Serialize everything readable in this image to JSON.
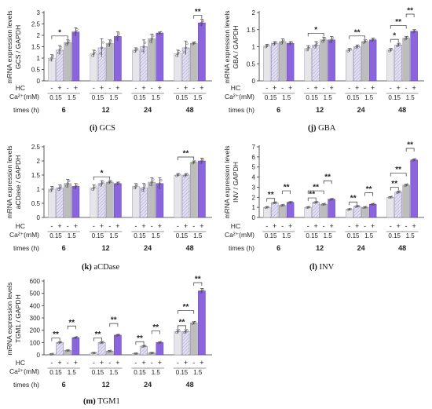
{
  "chart_data": [
    {
      "type": "bar",
      "panel": "i",
      "caption_label": "(i)",
      "caption_text": "GCS",
      "ylabel_line1": "mRNA expression levels",
      "ylabel_line2": "GCS / GAPDH",
      "ylim": [
        0,
        3
      ],
      "yticks": [
        "0",
        "0.5",
        "1",
        "1.5",
        "2",
        "2.5",
        "3"
      ],
      "values": [
        1.0,
        1.35,
        1.68,
        2.15,
        1.2,
        1.45,
        1.65,
        1.95,
        1.35,
        1.5,
        1.85,
        2.1,
        1.2,
        1.45,
        1.65,
        2.55
      ],
      "errors": [
        0.15,
        0.2,
        0.12,
        0.18,
        0.15,
        0.4,
        0.15,
        0.2,
        0.1,
        0.3,
        0.2,
        0.05,
        0.15,
        0.3,
        0.05,
        0.15
      ],
      "significance": [
        {
          "group": 0,
          "from": 0,
          "to": 2,
          "label": "*"
        },
        {
          "group": 3,
          "from": 2,
          "to": 3,
          "label": "**"
        }
      ]
    },
    {
      "type": "bar",
      "panel": "j",
      "caption_label": "(j)",
      "caption_text": "GBA",
      "ylabel_line1": "mRNA expression levels",
      "ylabel_line2": "GBA / GAPDH",
      "ylim": [
        0,
        2
      ],
      "yticks": [
        "0",
        "0.5",
        "1",
        "1.5",
        "2"
      ],
      "values": [
        1.02,
        1.1,
        1.15,
        1.1,
        0.95,
        1.05,
        1.2,
        1.2,
        0.9,
        1.0,
        1.15,
        1.2,
        0.9,
        1.05,
        1.25,
        1.45
      ],
      "errors": [
        0.05,
        0.05,
        0.08,
        0.05,
        0.08,
        0.1,
        0.08,
        0.1,
        0.05,
        0.05,
        0.05,
        0.05,
        0.05,
        0.05,
        0.05,
        0.05
      ],
      "significance": [
        {
          "group": 1,
          "from": 0,
          "to": 2,
          "label": "*"
        },
        {
          "group": 2,
          "from": 0,
          "to": 2,
          "label": "**"
        },
        {
          "group": 3,
          "from": 0,
          "to": 1,
          "label": "*"
        },
        {
          "group": 3,
          "from": 0,
          "to": 2,
          "label": "**"
        },
        {
          "group": 3,
          "from": 2,
          "to": 3,
          "label": "**"
        }
      ]
    },
    {
      "type": "bar",
      "panel": "k",
      "caption_label": "(k)",
      "caption_text": "aCDase",
      "ylabel_line1": "mRNA expression levels",
      "ylabel_line2": "aCDase / GAPDH",
      "ylim": [
        0,
        2.5
      ],
      "yticks": [
        "0",
        "0.5",
        "1",
        "1.5",
        "2",
        "2.5"
      ],
      "values": [
        1.0,
        1.05,
        1.2,
        1.1,
        1.05,
        1.2,
        1.25,
        1.2,
        1.1,
        1.05,
        1.25,
        1.2,
        1.5,
        1.5,
        1.95,
        2.0
      ],
      "errors": [
        0.1,
        0.1,
        0.15,
        0.1,
        0.1,
        0.1,
        0.05,
        0.05,
        0.1,
        0.15,
        0.15,
        0.2,
        0.05,
        0.05,
        0.05,
        0.1
      ],
      "significance": [
        {
          "group": 1,
          "from": 0,
          "to": 2,
          "label": "*"
        },
        {
          "group": 3,
          "from": 0,
          "to": 2,
          "label": "**"
        }
      ]
    },
    {
      "type": "bar",
      "panel": "l",
      "caption_label": "(l)",
      "caption_text": "INV",
      "ylabel_line1": "mRNA expression levels",
      "ylabel_line2": "INV / GAPDH",
      "ylim": [
        0,
        7
      ],
      "yticks": [
        "0",
        "1",
        "2",
        "3",
        "4",
        "5",
        "6",
        "7"
      ],
      "values": [
        1.0,
        1.45,
        1.2,
        1.5,
        1.0,
        1.5,
        1.3,
        1.8,
        0.8,
        1.1,
        1.0,
        1.3,
        2.0,
        2.5,
        3.2,
        5.7
      ],
      "errors": [
        0.05,
        0.05,
        0.05,
        0.05,
        0.05,
        0.05,
        0.05,
        0.05,
        0.05,
        0.05,
        0.05,
        0.05,
        0.05,
        0.1,
        0.1,
        0.1
      ],
      "significance": [
        {
          "group": 0,
          "from": 0,
          "to": 1,
          "label": "**"
        },
        {
          "group": 0,
          "from": 2,
          "to": 3,
          "label": "**"
        },
        {
          "group": 1,
          "from": 0,
          "to": 1,
          "label": "**"
        },
        {
          "group": 1,
          "from": 0,
          "to": 2,
          "label": "**"
        },
        {
          "group": 1,
          "from": 2,
          "to": 3,
          "label": "**"
        },
        {
          "group": 2,
          "from": 0,
          "to": 1,
          "label": "**"
        },
        {
          "group": 2,
          "from": 2,
          "to": 3,
          "label": "**"
        },
        {
          "group": 3,
          "from": 0,
          "to": 1,
          "label": "**"
        },
        {
          "group": 3,
          "from": 0,
          "to": 2,
          "label": "**"
        },
        {
          "group": 3,
          "from": 2,
          "to": 3,
          "label": "**"
        }
      ]
    },
    {
      "type": "bar",
      "panel": "m",
      "caption_label": "(m)",
      "caption_text": "TGM1",
      "ylabel_line1": "mRNA expression levels",
      "ylabel_line2": "TGM1 / GAPDH",
      "ylim": [
        0,
        600
      ],
      "yticks": [
        "0",
        "100",
        "200",
        "300",
        "400",
        "500",
        "600"
      ],
      "values": [
        5,
        100,
        35,
        140,
        15,
        100,
        30,
        160,
        10,
        70,
        15,
        100,
        190,
        190,
        260,
        520
      ],
      "errors": [
        2,
        5,
        3,
        5,
        2,
        5,
        3,
        5,
        2,
        5,
        2,
        5,
        15,
        15,
        10,
        20
      ],
      "significance": [
        {
          "group": 0,
          "from": 0,
          "to": 1,
          "label": "**"
        },
        {
          "group": 0,
          "from": 2,
          "to": 3,
          "label": "**"
        },
        {
          "group": 1,
          "from": 0,
          "to": 1,
          "label": "**"
        },
        {
          "group": 1,
          "from": 2,
          "to": 3,
          "label": "**"
        },
        {
          "group": 2,
          "from": 0,
          "to": 1,
          "label": "**"
        },
        {
          "group": 2,
          "from": 2,
          "to": 3,
          "label": "**"
        },
        {
          "group": 3,
          "from": 0,
          "to": 1,
          "label": "**"
        },
        {
          "group": 3,
          "from": 0,
          "to": 2,
          "label": "**"
        },
        {
          "group": 3,
          "from": 2,
          "to": 3,
          "label": "**"
        }
      ]
    }
  ],
  "shared_axis": {
    "hc_label": "HC",
    "hc_signs": [
      "-",
      "+",
      "-",
      "+"
    ],
    "ca_label": "Ca²⁺(mM)",
    "ca_values": [
      "0.15",
      "1.5"
    ],
    "times_label": "times (h)",
    "times": [
      "6",
      "12",
      "24",
      "48"
    ]
  },
  "colors": {
    "light": "#e6e6ea",
    "light_hatch": "#d2cfe6",
    "gray": "#bdbdbd",
    "purple": "#8a65dd"
  }
}
